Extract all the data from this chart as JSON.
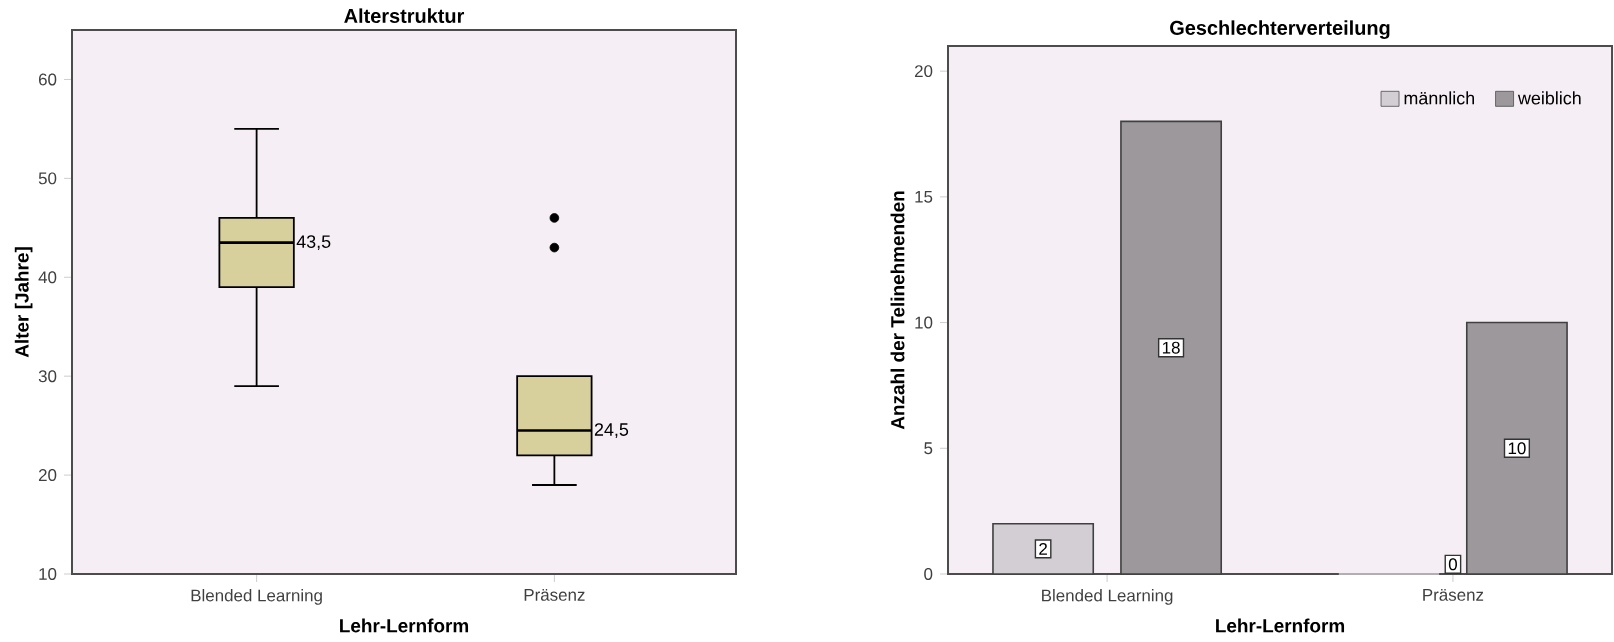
{
  "chart_data": [
    {
      "type": "box",
      "title": "Alterstruktur",
      "xlabel": "Lehr-Lernform",
      "ylabel": "Alter [Jahre]",
      "categories": [
        "Blended Learning",
        "Präsenz"
      ],
      "color": "#d8d09c",
      "boxes": [
        {
          "low": 29,
          "q1": 39,
          "median": 43.5,
          "q3": 46,
          "high": 55
        },
        {
          "low": 19,
          "q1": 22,
          "median": 24.5,
          "q3": 30,
          "high": 30,
          "outliers": [
            43,
            46
          ]
        }
      ],
      "ylim": [
        10,
        65
      ],
      "yticks": [
        10,
        20,
        30,
        40,
        50,
        60
      ],
      "annotations": [
        "43,5",
        "24,5"
      ]
    },
    {
      "type": "bar",
      "title": "Geschlechterverteilung",
      "xlabel": "Lehr-Lernform",
      "ylabel": "Anzahl der Telinehmenden",
      "categories": [
        "Blended Learning",
        "Präsenz"
      ],
      "series": [
        {
          "name": "männlich",
          "color": "#d3ced3",
          "values": [
            2,
            0
          ]
        },
        {
          "name": "weiblich",
          "color": "#9c989c",
          "values": [
            18,
            10
          ]
        }
      ],
      "ylim": [
        0,
        21
      ],
      "yticks": [
        0,
        5,
        10,
        15,
        20
      ],
      "data_labels": true,
      "legend": "top right"
    }
  ]
}
